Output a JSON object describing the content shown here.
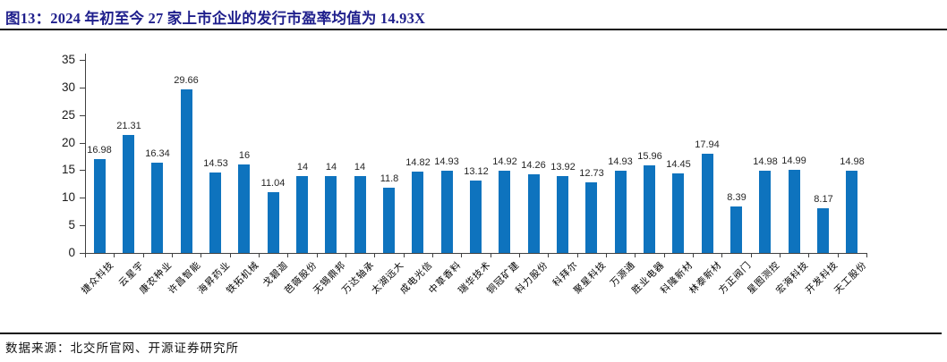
{
  "header": {
    "title": "图13：2024 年初至今 27 家上市企业的发行市盈率均值为 14.93X"
  },
  "footer": {
    "source": "数据来源：北交所官网、开源证券研究所"
  },
  "colors": {
    "bar": "#0E73BE",
    "title": "#1F1F8C",
    "axis": "#404040",
    "value_label": "#262626",
    "divider": "#111111"
  },
  "chart_data": {
    "type": "bar",
    "title": "图13：2024 年初至今 27 家上市企业的发行市盈率均值为 14.93X",
    "mean_value": 14.93,
    "categories": [
      "捷众科技",
      "云星宇",
      "康农种业",
      "许昌智能",
      "海昇药业",
      "铁拓机械",
      "戈碧迦",
      "芭薇股份",
      "无锡鼎邦",
      "万达轴承",
      "太湖远大",
      "成电光信",
      "中草香料",
      "瑞华技术",
      "铜冠矿建",
      "科力股份",
      "科拜尔",
      "聚星科技",
      "万源通",
      "胜业电器",
      "科隆新材",
      "林泰新材",
      "方正阀门",
      "星图测控",
      "宏海科技",
      "开发科技",
      "天工股份"
    ],
    "values": [
      16.98,
      21.31,
      16.34,
      29.66,
      14.53,
      16,
      11.04,
      14,
      14,
      14,
      11.8,
      14.82,
      14.93,
      13.12,
      14.92,
      14.26,
      13.92,
      12.73,
      14.93,
      15.96,
      14.45,
      17.94,
      8.39,
      14.98,
      14.99,
      8.17,
      14.98
    ],
    "value_labels": [
      "16.98",
      "21.31",
      "16.34",
      "29.66",
      "14.53",
      "16",
      "11.04",
      "14",
      "14",
      "14",
      "11.8",
      "14.82",
      "14.93",
      "13.12",
      "14.92",
      "14.26",
      "13.92",
      "12.73",
      "14.93",
      "15.96",
      "14.45",
      "17.94",
      "8.39",
      "14.98",
      "14.99",
      "8.17",
      "14.98"
    ],
    "xlabel": "",
    "ylabel": "",
    "ylim": [
      0,
      35
    ],
    "yticks": [
      0,
      5,
      10,
      15,
      20,
      25,
      30,
      35
    ],
    "grid": false,
    "legend": "none",
    "bar_color": "#0E73BE"
  }
}
